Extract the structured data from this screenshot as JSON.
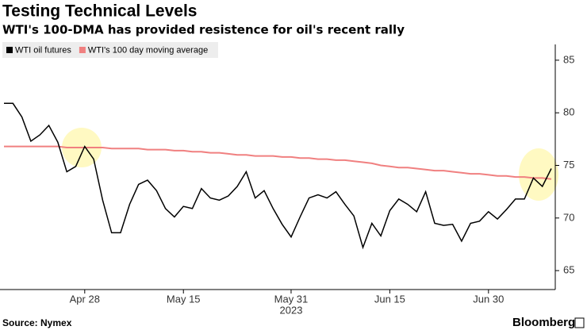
{
  "chart_data": {
    "type": "line",
    "title": "Testing Technical Levels",
    "subtitle": "WTI's 100-DMA has provided resistence for oil's recent rally",
    "source": "Source: Nymex",
    "brand": "Bloomberg",
    "year_label": "2023",
    "categories": [
      null,
      null,
      null,
      null,
      null,
      null,
      null,
      null,
      null,
      "Apr 28",
      null,
      null,
      null,
      null,
      null,
      null,
      null,
      null,
      null,
      null,
      "May 15",
      null,
      null,
      null,
      null,
      null,
      null,
      null,
      null,
      null,
      null,
      null,
      "May 31",
      null,
      null,
      null,
      null,
      null,
      null,
      null,
      null,
      null,
      null,
      "Jun 15",
      null,
      null,
      null,
      null,
      null,
      null,
      null,
      null,
      null,
      null,
      "Jun 30",
      null,
      null,
      null,
      null,
      null,
      null,
      null
    ],
    "series": [
      {
        "name": "WTI oil futures",
        "color": "#000000",
        "values": [
          80.9,
          80.9,
          79.6,
          77.3,
          77.9,
          78.8,
          77.2,
          74.4,
          74.9,
          76.8,
          75.6,
          71.7,
          68.6,
          68.6,
          71.3,
          73.2,
          73.6,
          72.6,
          70.9,
          70.1,
          71.1,
          70.9,
          72.8,
          71.9,
          71.7,
          72.1,
          73.0,
          74.4,
          71.9,
          72.6,
          70.9,
          69.4,
          68.2,
          70.1,
          71.9,
          72.2,
          71.9,
          72.5,
          71.3,
          70.2,
          67.2,
          69.5,
          68.3,
          70.7,
          71.8,
          71.3,
          70.6,
          72.5,
          69.5,
          69.3,
          69.4,
          67.8,
          69.5,
          69.7,
          70.6,
          69.9,
          70.8,
          71.8,
          71.8,
          73.8,
          73.0,
          74.7
        ]
      },
      {
        "name": "WTI's 100 day moving average",
        "color": "#f08080",
        "values": [
          76.8,
          76.8,
          76.8,
          76.8,
          76.8,
          76.8,
          76.8,
          76.7,
          76.7,
          76.7,
          76.7,
          76.7,
          76.6,
          76.6,
          76.6,
          76.6,
          76.5,
          76.5,
          76.5,
          76.4,
          76.4,
          76.3,
          76.3,
          76.2,
          76.2,
          76.1,
          76.0,
          76.0,
          75.9,
          75.9,
          75.9,
          75.8,
          75.8,
          75.7,
          75.7,
          75.6,
          75.6,
          75.5,
          75.5,
          75.4,
          75.3,
          75.2,
          75.0,
          74.9,
          74.8,
          74.8,
          74.7,
          74.6,
          74.5,
          74.5,
          74.4,
          74.3,
          74.2,
          74.2,
          74.1,
          74.0,
          74.0,
          73.9,
          73.9,
          73.8,
          73.8,
          73.7
        ]
      }
    ],
    "ylim": [
      63.2,
      86.5
    ],
    "yticks": [
      65,
      70,
      75,
      80,
      85
    ],
    "y_axis_side": "right",
    "grid": false,
    "legend": "top-left"
  }
}
